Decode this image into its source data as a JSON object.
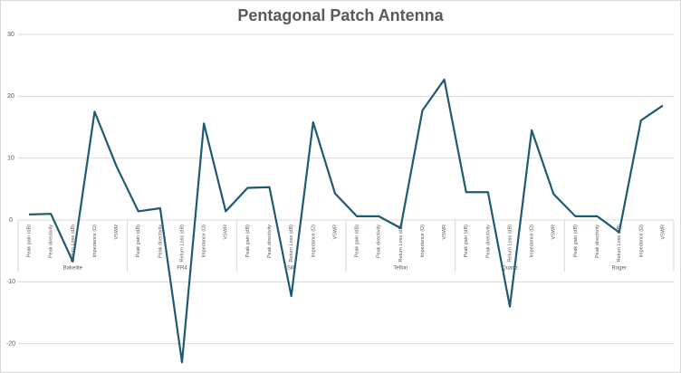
{
  "chart_data": {
    "type": "line",
    "title": "Pentagonal Patch Antenna",
    "groups": [
      "Bakelite",
      "FR4",
      "Silk",
      "Teflon",
      "Quartz",
      "Roger"
    ],
    "categories": [
      "Peak gain (dB)",
      "Peak directivity",
      "Return Loss (dB)",
      "Impedance (Ω)",
      "VSWR",
      "Peak gain (dB)",
      "Peak directivity",
      "Return Loss (dB)",
      "Impedance (Ω)",
      "VSWR",
      "Peak gain (dB)",
      "Peak directivity",
      "Return Loss (dB)",
      "Impedance (Ω)",
      "VSWR",
      "Peak gain (dB)",
      "Peak directivity",
      "Return Loss (dB)",
      "Impedance (Ω)",
      "VSWR",
      "Peak gain (dB)",
      "Peak directivity",
      "Return Loss (dB)",
      "Impedance (Ω)",
      "VSWR",
      "Peak gain (dB)",
      "Peak directivity",
      "Return Loss (dB)",
      "Impedance (Ω)",
      "VSWR"
    ],
    "values": [
      0.9,
      1.0,
      -6.7,
      17.5,
      8.7,
      1.4,
      1.9,
      -23,
      15.6,
      1.4,
      5.2,
      5.3,
      -12.3,
      15.8,
      4.3,
      0.6,
      0.6,
      -1.3,
      17.7,
      22.7,
      4.5,
      4.5,
      -14,
      14.5,
      4.2,
      0.6,
      0.6,
      -2,
      16.1,
      18.5
    ],
    "color": "#1f5a72",
    "ylim": [
      -24,
      30
    ],
    "yticks": [
      -20,
      -10,
      0,
      10,
      20,
      30
    ],
    "grid": true
  }
}
